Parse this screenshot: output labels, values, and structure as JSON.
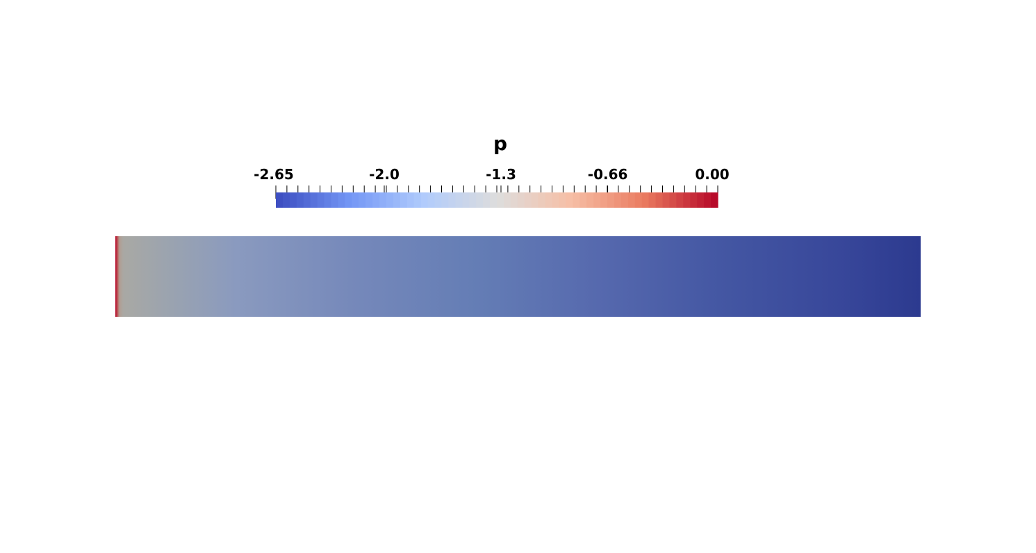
{
  "chart_data": {
    "type": "heatmap",
    "title": "p",
    "colorbar": {
      "orientation": "horizontal",
      "placement": "top",
      "range": [
        -2.65,
        0.0
      ],
      "tick_labels": [
        "-2.65",
        "-2.0",
        "-1.3",
        "-0.66",
        "0.00"
      ],
      "tick_values": [
        -2.65,
        -2.0,
        -1.3,
        -0.66,
        0.0
      ],
      "colormap": "coolwarm",
      "colormap_stops": [
        "#3b4cc0",
        "#7396f5",
        "#b0cbfc",
        "#dddddd",
        "#f6bfa6",
        "#ea7b60",
        "#b40426"
      ],
      "discrete_levels": 64
    },
    "field": {
      "description_values_left_to_right": [
        {
          "x": 0.0,
          "value": -0.05
        },
        {
          "x": 0.005,
          "value": -1.02
        },
        {
          "x": 0.07,
          "value": -1.12
        },
        {
          "x": 0.15,
          "value": -1.25
        },
        {
          "x": 0.3,
          "value": -1.52
        },
        {
          "x": 0.45,
          "value": -1.76
        },
        {
          "x": 0.6,
          "value": -1.98
        },
        {
          "x": 0.75,
          "value": -2.2
        },
        {
          "x": 0.9,
          "value": -2.45
        },
        {
          "x": 1.0,
          "value": -2.65
        }
      ],
      "colors_left_to_right": [
        "#b40426",
        "#aaa9a3",
        "#9aa3b0",
        "#8a9abf",
        "#7588ba",
        "#647db5",
        "#5669ae",
        "#4457a3",
        "#38479a",
        "#2c3a8f"
      ]
    },
    "grid": false,
    "legend": "none"
  }
}
